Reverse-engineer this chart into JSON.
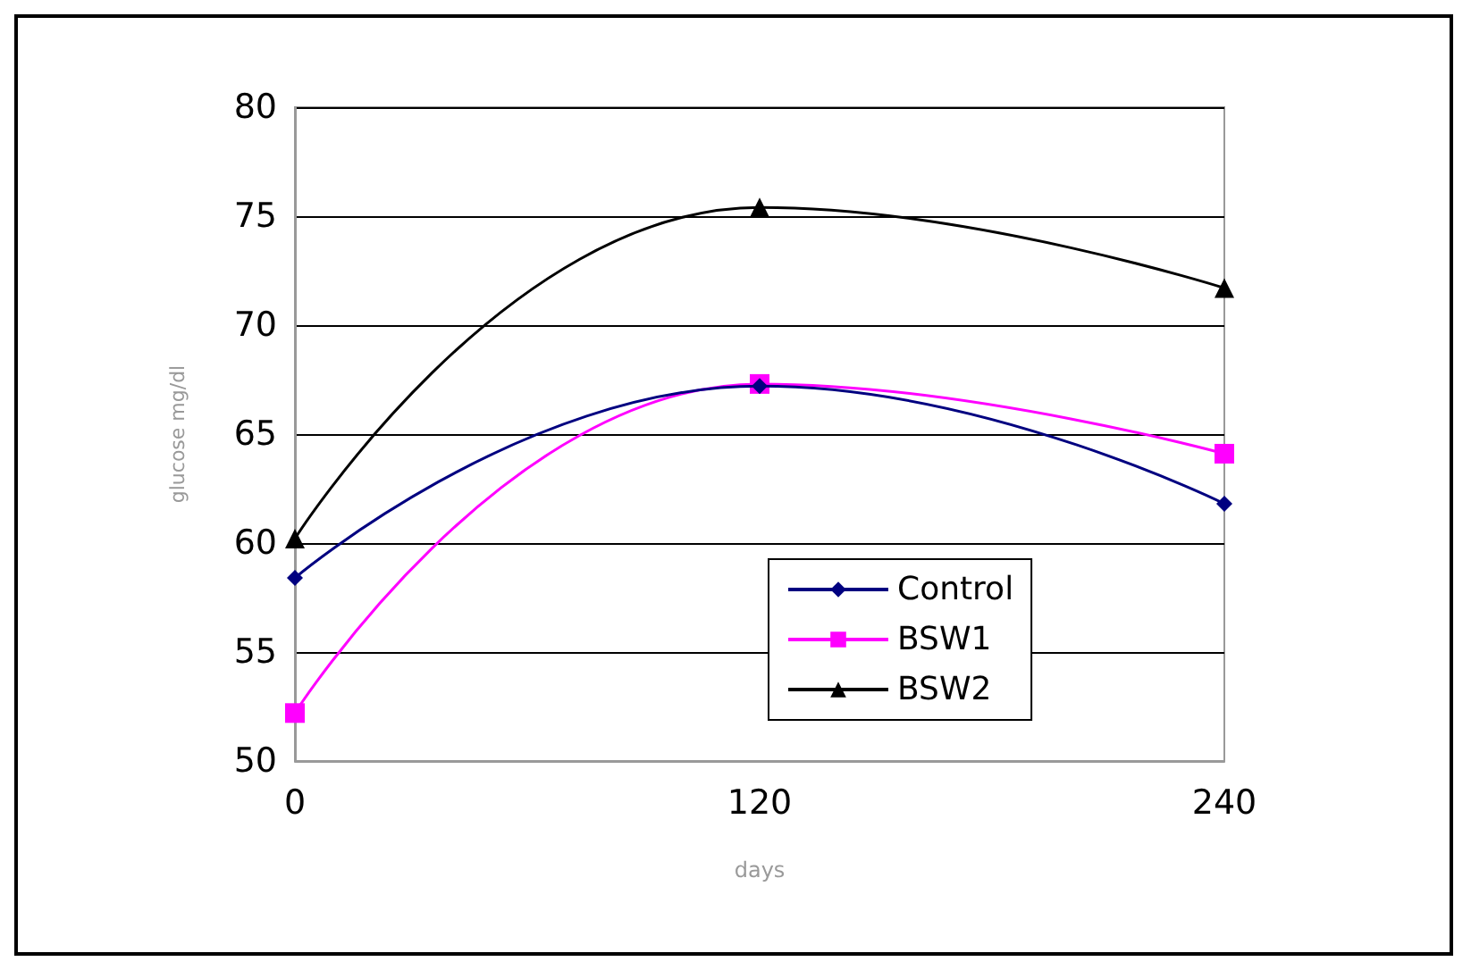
{
  "chart_data": {
    "type": "line",
    "xlabel": "days",
    "ylabel": "glucose mg/dl",
    "x": [
      0,
      120,
      240
    ],
    "xlim": [
      0,
      240
    ],
    "xticks": [
      0,
      120,
      240
    ],
    "ylim": [
      50,
      80
    ],
    "yticks": [
      50,
      55,
      60,
      65,
      70,
      75,
      80
    ],
    "grid": "y",
    "legend": "bottom",
    "line_style": "solid",
    "series": [
      {
        "name": "Control",
        "color": "#000080",
        "marker": "diamond",
        "values": [
          58.4,
          67.2,
          61.8
        ]
      },
      {
        "name": "BSW1",
        "color": "#ff00ff",
        "marker": "square",
        "values": [
          52.2,
          67.3,
          64.1
        ]
      },
      {
        "name": "BSW2",
        "color": "#000000",
        "marker": "triangle",
        "values": [
          60.2,
          75.4,
          71.7
        ]
      }
    ]
  }
}
